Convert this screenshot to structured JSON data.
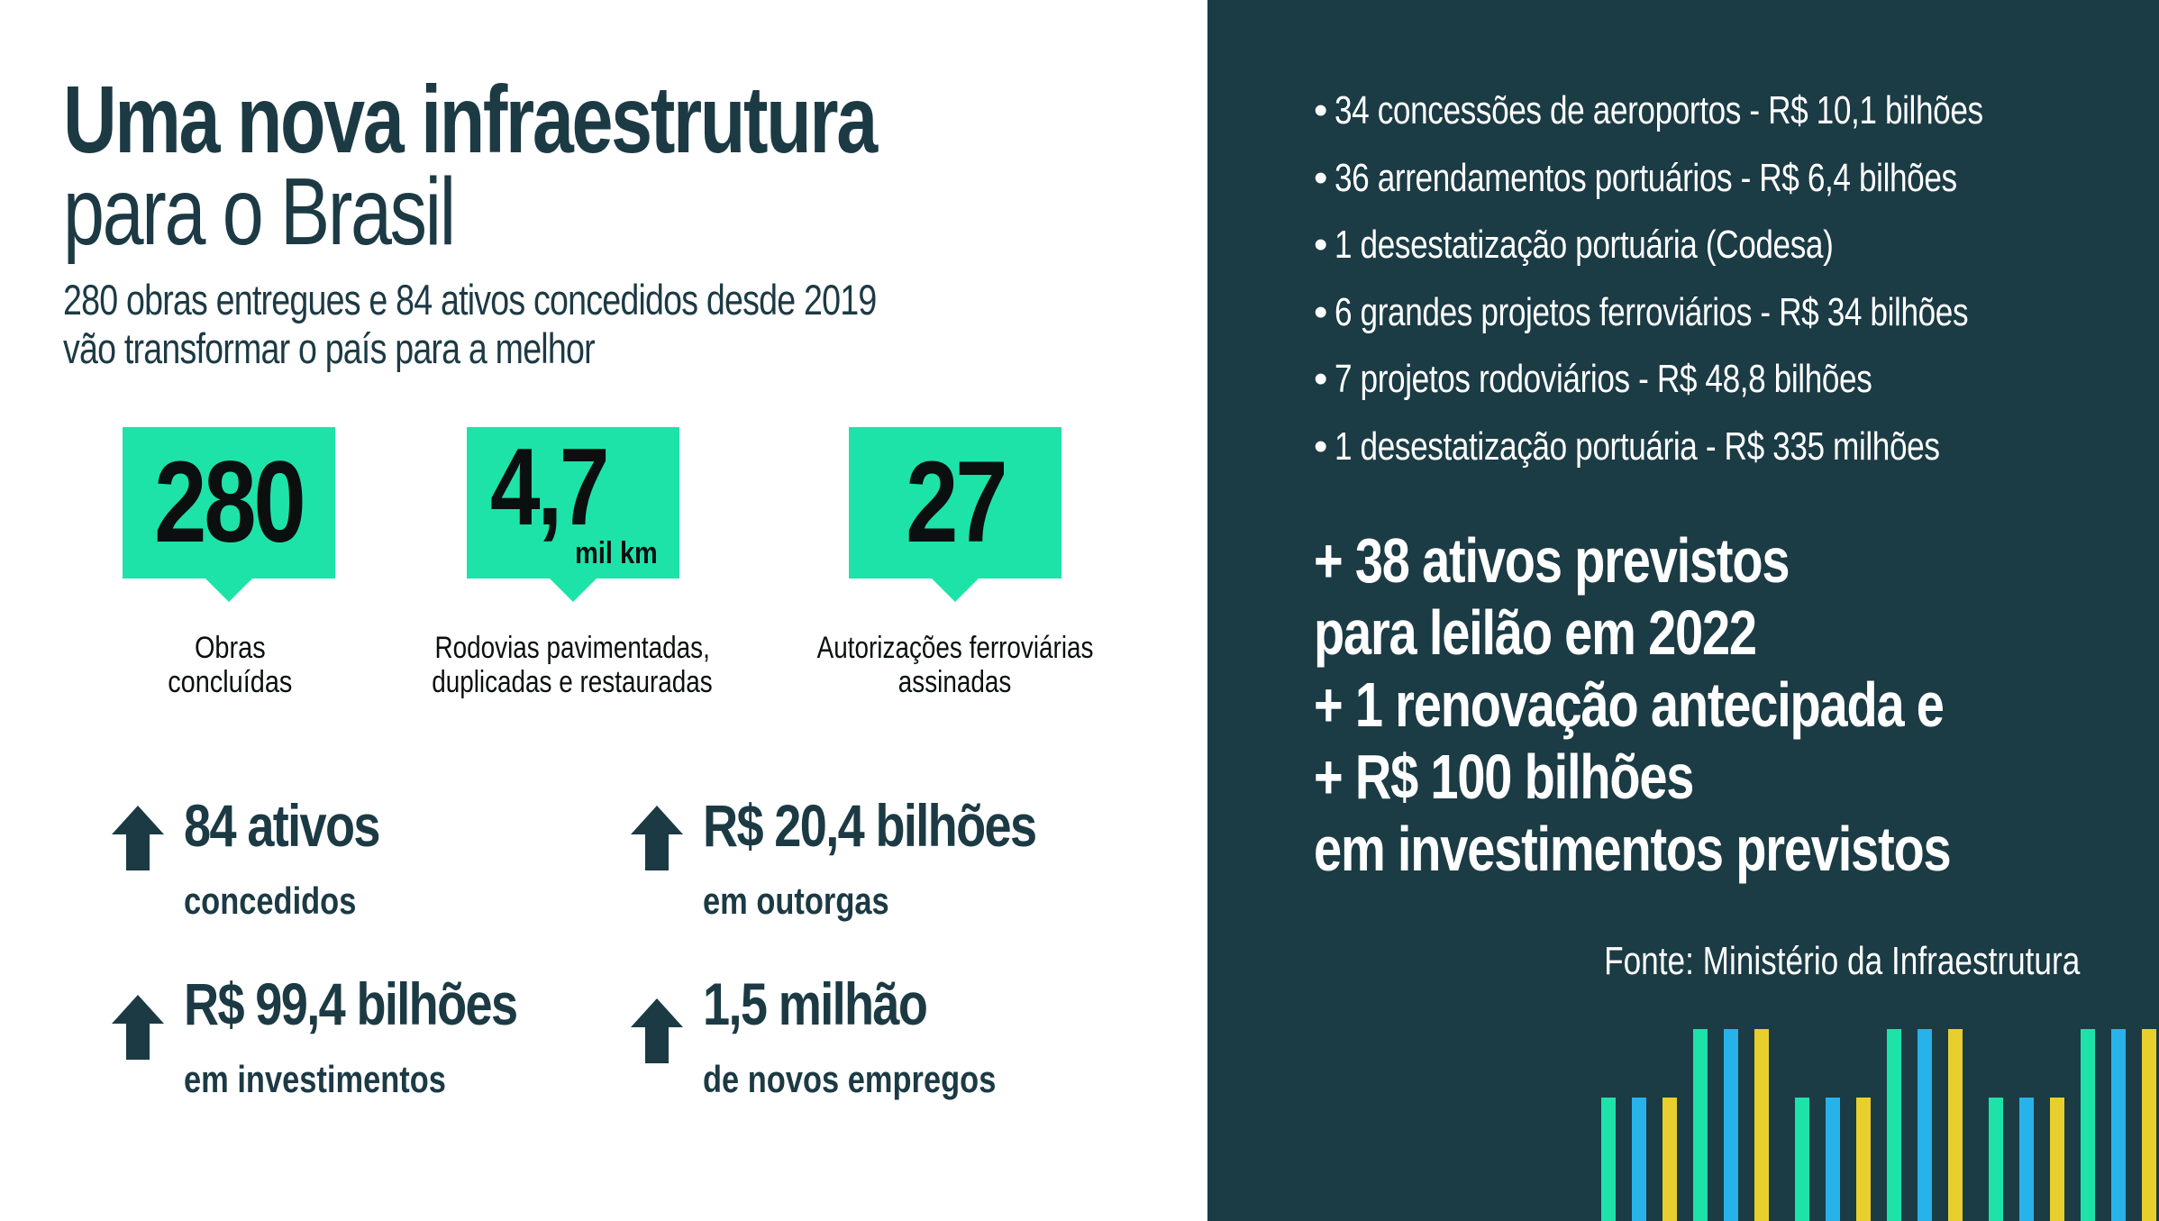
{
  "title": {
    "light": "Uma nova",
    "strong": "infraestrutura",
    "line2": "para o Brasil"
  },
  "subtitle": {
    "line1": "280 obras entregues e 84 ativos concedidos desde 2019",
    "line2": "vão transformar o país para a melhor"
  },
  "stats": [
    {
      "value": "280",
      "unit": "",
      "caption_line1": "Obras",
      "caption_line2": "concluídas"
    },
    {
      "value": "4,7",
      "unit": "mil km",
      "caption_line1": "Rodovias pavimentadas,",
      "caption_line2": "duplicadas e restauradas"
    },
    {
      "value": "27",
      "unit": "",
      "caption_line1": "Autorizações ferroviárias",
      "caption_line2": "assinadas"
    }
  ],
  "metrics": [
    {
      "value": "84 ativos",
      "label": "concedidos"
    },
    {
      "value": "R$ 20,4 bilhões",
      "label": "em outorgas"
    },
    {
      "value": "R$ 99,4 bilhões",
      "label": "em investimentos"
    },
    {
      "value": "1,5 milhão",
      "label": "de novos empregos"
    }
  ],
  "list": [
    "34 concessões de aeroportos  - R$ 10,1 bilhões",
    "36 arrendamentos portuários  - R$ 6,4 bilhões",
    "1 desestatização portuária (Codesa)",
    "6 grandes projetos ferroviários  - R$ 34 bilhões",
    "7 projetos rodoviários  - R$ 48,8 bilhões",
    "1 desestatização portuária  - R$ 335 milhões"
  ],
  "highlight": {
    "l1_strong": "+ 38 ativos",
    "l1_rest": " previstos",
    "l2": "para leilão em 2022",
    "l3_strong": "+ 1 renovação",
    "l3_rest": " antecipada e",
    "l4": "+ R$ 100 bilhões",
    "l5": "em investimentos previstos"
  },
  "source": "Fonte: Ministério da Infraestrutura",
  "colors": {
    "navy": "#1b3b45",
    "text_dark": "#1c3a44",
    "green": "#1ee3a9",
    "bar_green": "#1ee3a9",
    "bar_blue": "#27b3ea",
    "bar_yellow": "#e8cf2e"
  },
  "icons": {
    "metric_icon": "arrow-up-icon"
  }
}
